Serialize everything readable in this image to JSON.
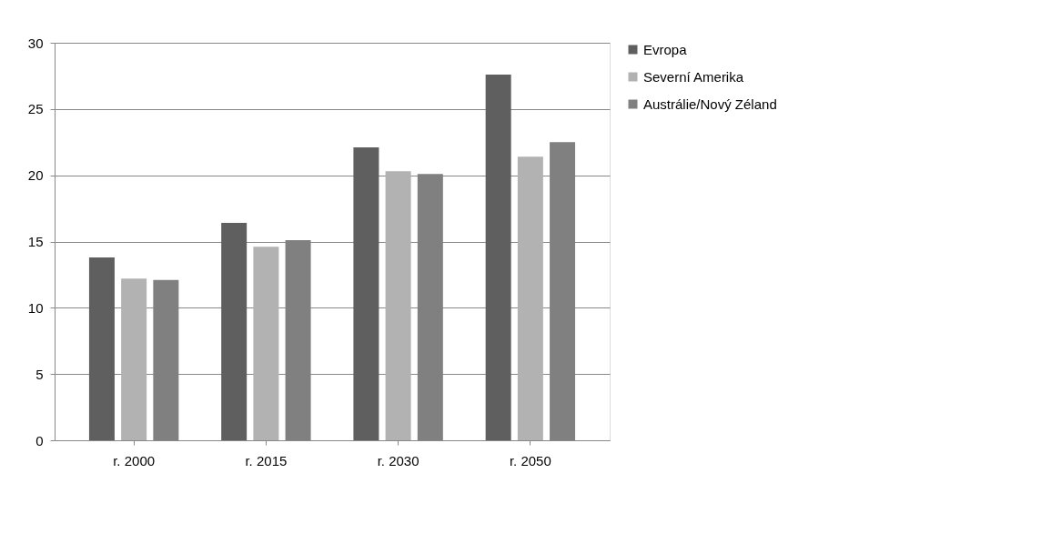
{
  "chart_data": {
    "type": "bar",
    "categories": [
      "r. 2000",
      "r. 2015",
      "r. 2030",
      "r. 2050"
    ],
    "series": [
      {
        "name": "Evropa",
        "color": "#5f5f5f",
        "values": [
          13.8,
          16.4,
          22.1,
          27.6
        ]
      },
      {
        "name": "Severní Amerika",
        "color": "#b2b2b2",
        "values": [
          12.2,
          14.6,
          20.3,
          21.4
        ]
      },
      {
        "name": "Austrálie/Nový Zéland",
        "color": "#808080",
        "values": [
          12.1,
          15.1,
          20.1,
          22.5
        ]
      }
    ],
    "ylim": [
      0,
      30
    ],
    "yticks": [
      0,
      5,
      10,
      15,
      20,
      25,
      30
    ],
    "grid": "y",
    "legend": "right"
  }
}
